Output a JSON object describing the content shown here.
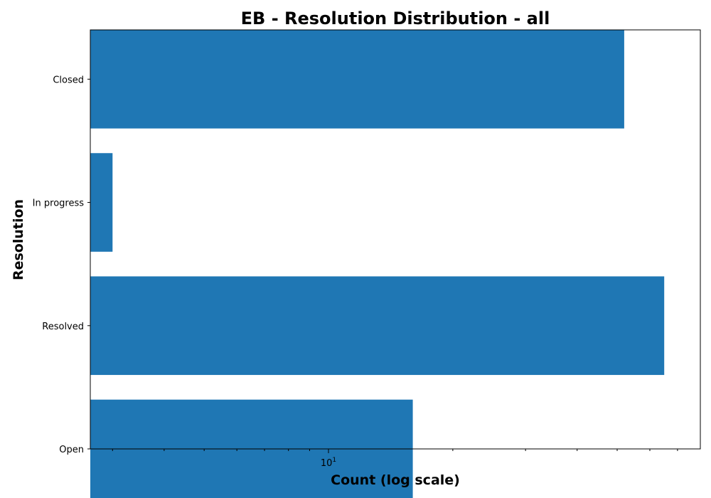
{
  "chart_data": {
    "type": "bar",
    "orientation": "horizontal",
    "title": "EB - Resolution Distribution - all",
    "xlabel": "Count (log scale)",
    "ylabel": "Resolution",
    "xscale": "log",
    "xlim": [
      2.65,
      79.5
    ],
    "categories": [
      "Closed",
      "In progress",
      "Resolved",
      "Open"
    ],
    "values": [
      52,
      3,
      65,
      16
    ],
    "x_major_ticks": [
      {
        "value": 10,
        "base": "10",
        "exponent": "1"
      }
    ],
    "x_minor_ticks": [
      3,
      4,
      5,
      6,
      7,
      8,
      9,
      20,
      30,
      40,
      50,
      60,
      70
    ],
    "bar_color": "#1f77b4",
    "grid": false,
    "legend": "none"
  }
}
